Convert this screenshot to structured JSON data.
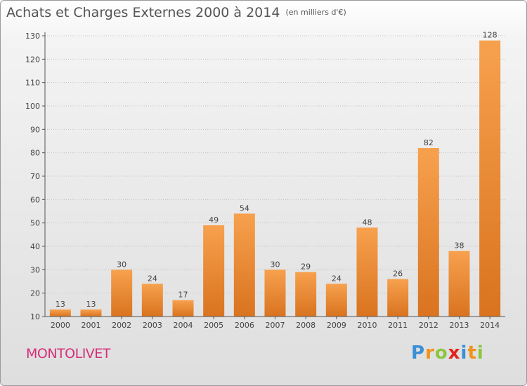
{
  "header": {
    "title": "Achats et Charges Externes 2000 à 2014",
    "subtitle": "(en milliers d'€)"
  },
  "footer": {
    "location": "MONTOLIVET",
    "logo": {
      "letters": [
        "P",
        "r",
        "o",
        "x",
        "i",
        "t",
        "i"
      ],
      "colors": [
        "#3a8fd6",
        "#f0931c",
        "#8cc63f",
        "#e2231a",
        "#3a8fd6",
        "#f0931c",
        "#8cc63f"
      ]
    }
  },
  "chart_data": {
    "type": "bar",
    "title": "Achats et Charges Externes 2000 à 2014",
    "subtitle": "(en milliers d'€)",
    "categories": [
      "2000",
      "2001",
      "2002",
      "2003",
      "2004",
      "2005",
      "2006",
      "2007",
      "2008",
      "2009",
      "2010",
      "2011",
      "2012",
      "2013",
      "2014"
    ],
    "values": [
      13,
      13,
      30,
      24,
      17,
      49,
      54,
      30,
      29,
      24,
      48,
      26,
      82,
      38,
      128
    ],
    "ylim": [
      10,
      130
    ],
    "yticks": [
      10,
      20,
      30,
      40,
      50,
      60,
      70,
      80,
      90,
      100,
      110,
      120,
      130
    ],
    "grid": "horizontal-dotted",
    "bar_color_top": "#f7a14e",
    "bar_color_bottom": "#d9731f",
    "axis_color": "#555555"
  }
}
